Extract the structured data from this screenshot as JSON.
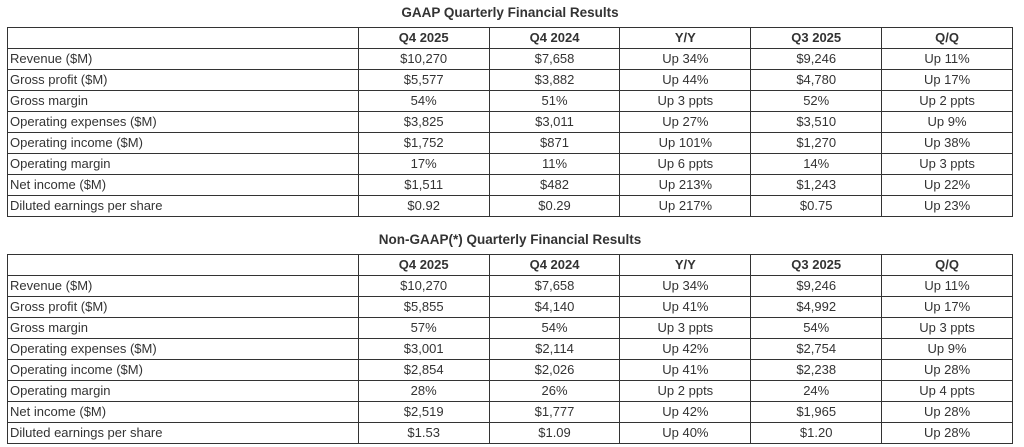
{
  "page": {
    "background_color": "#ffffff",
    "text_color": "#333333",
    "border_color": "#333333"
  },
  "chart_data": [
    {
      "type": "table",
      "title": "GAAP Quarterly Financial Results",
      "headers": [
        "",
        "Q4 2025",
        "Q4 2024",
        "Y/Y",
        "Q3 2025",
        "Q/Q"
      ],
      "rows": [
        [
          "Revenue ($M)",
          "$10,270",
          "$7,658",
          "Up 34%",
          "$9,246",
          "Up 11%"
        ],
        [
          "Gross profit ($M)",
          "$5,577",
          "$3,882",
          "Up 44%",
          "$4,780",
          "Up 17%"
        ],
        [
          "Gross margin",
          "54%",
          "51%",
          "Up 3 ppts",
          "52%",
          "Up 2 ppts"
        ],
        [
          "Operating expenses ($M)",
          "$3,825",
          "$3,011",
          "Up 27%",
          "$3,510",
          "Up 9%"
        ],
        [
          "Operating income ($M)",
          "$1,752",
          "$871",
          "Up 101%",
          "$1,270",
          "Up 38%"
        ],
        [
          "Operating margin",
          "17%",
          "11%",
          "Up 6 ppts",
          "14%",
          "Up 3 ppts"
        ],
        [
          "Net income ($M)",
          "$1,511",
          "$482",
          "Up 213%",
          "$1,243",
          "Up 22%"
        ],
        [
          "Diluted earnings per share",
          "$0.92",
          "$0.29",
          "Up 217%",
          "$0.75",
          "Up 23%"
        ]
      ]
    },
    {
      "type": "table",
      "title": "Non-GAAP(*) Quarterly Financial Results",
      "headers": [
        "",
        "Q4 2025",
        "Q4 2024",
        "Y/Y",
        "Q3 2025",
        "Q/Q"
      ],
      "rows": [
        [
          "Revenue ($M)",
          "$10,270",
          "$7,658",
          "Up 34%",
          "$9,246",
          "Up 11%"
        ],
        [
          "Gross profit ($M)",
          "$5,855",
          "$4,140",
          "Up 41%",
          "$4,992",
          "Up 17%"
        ],
        [
          "Gross margin",
          "57%",
          "54%",
          "Up 3 ppts",
          "54%",
          "Up 3 ppts"
        ],
        [
          "Operating expenses ($M)",
          "$3,001",
          "$2,114",
          "Up 42%",
          "$2,754",
          "Up 9%"
        ],
        [
          "Operating income ($M)",
          "$2,854",
          "$2,026",
          "Up 41%",
          "$2,238",
          "Up 28%"
        ],
        [
          "Operating margin",
          "28%",
          "26%",
          "Up 2 ppts",
          "24%",
          "Up 4 ppts"
        ],
        [
          "Net income ($M)",
          "$2,519",
          "$1,777",
          "Up 42%",
          "$1,965",
          "Up 28%"
        ],
        [
          "Diluted earnings per share",
          "$1.53",
          "$1.09",
          "Up 40%",
          "$1.20",
          "Up 28%"
        ]
      ]
    }
  ]
}
